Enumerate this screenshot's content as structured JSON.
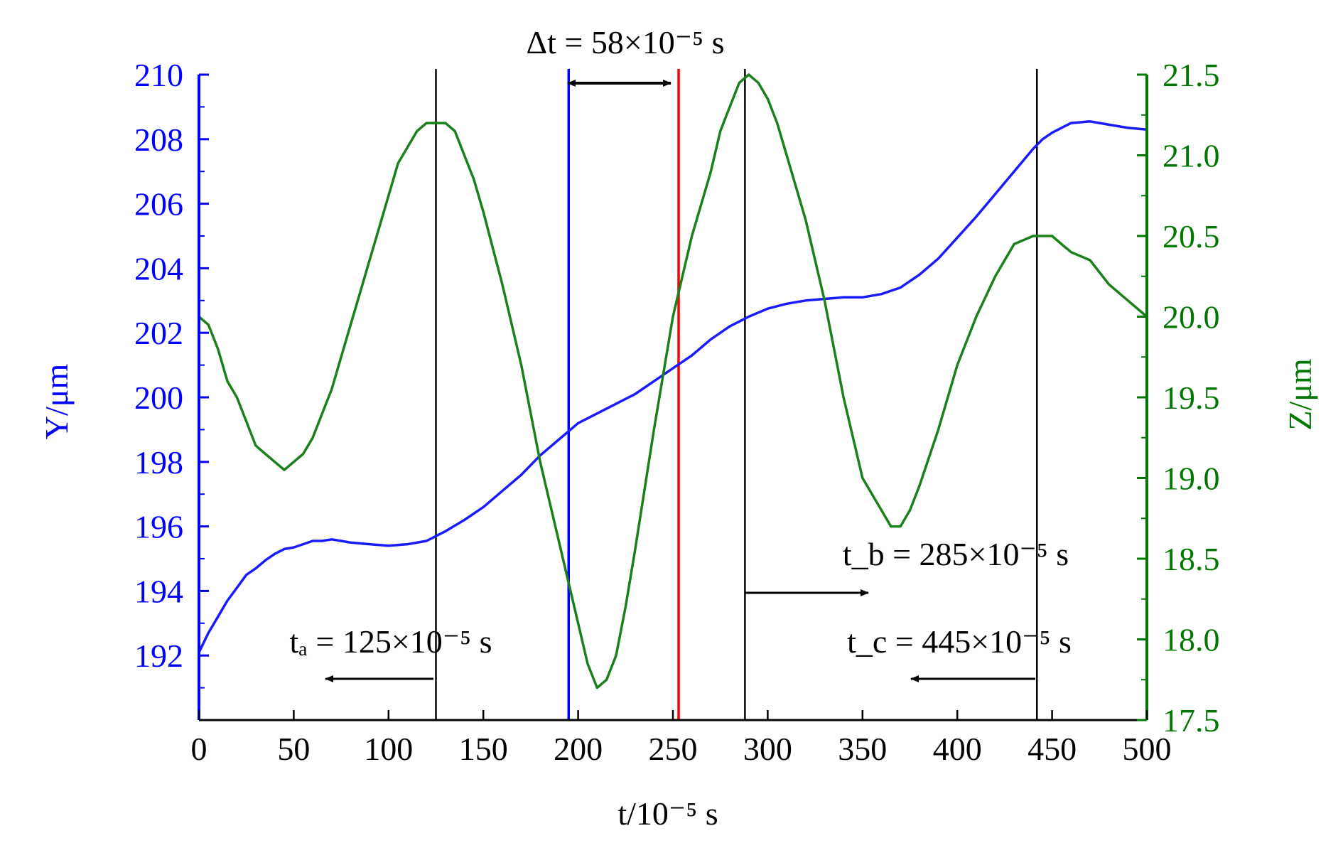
{
  "chart_data": {
    "type": "line",
    "title": "",
    "xlabel": "t/10⁻⁵ s",
    "ylabel_left": "Y/μm",
    "ylabel_right": "Z/μm",
    "xlim": [
      0,
      500
    ],
    "ylim_left": [
      190,
      210
    ],
    "ylim_right": [
      17.5,
      21.5
    ],
    "grid": false,
    "x_ticks": [
      0,
      50,
      100,
      150,
      200,
      250,
      300,
      350,
      400,
      450,
      500
    ],
    "y_left_ticks": [
      192,
      194,
      196,
      198,
      200,
      202,
      204,
      206,
      208,
      210
    ],
    "y_right_ticks": [
      "17.5",
      "18.0",
      "18.5",
      "19.0",
      "19.5",
      "20.0",
      "20.5",
      "21.0",
      "21.5"
    ],
    "colors": {
      "left_axis": "#0000ff",
      "right_axis": "#007700",
      "Y": "#1a1aff",
      "Z": "#1a801a",
      "marker_blue": "#0000ff",
      "marker_red": "#ff0000",
      "marker_black": "#000000"
    },
    "series": [
      {
        "axis": "left",
        "x": [
          0,
          5,
          10,
          15,
          20,
          25,
          30,
          35,
          40,
          45,
          50,
          55,
          60,
          65,
          70,
          75,
          80,
          90,
          100,
          110,
          120,
          125,
          130,
          140,
          150,
          160,
          170,
          180,
          190,
          200,
          210,
          220,
          230,
          240,
          250,
          260,
          270,
          280,
          285,
          290,
          300,
          310,
          320,
          330,
          340,
          350,
          360,
          370,
          380,
          390,
          400,
          410,
          420,
          430,
          440,
          445,
          450,
          460,
          470,
          480,
          490,
          500
        ],
        "values": [
          192.1,
          192.7,
          193.2,
          193.7,
          194.1,
          194.5,
          194.7,
          194.95,
          195.15,
          195.3,
          195.35,
          195.45,
          195.55,
          195.55,
          195.6,
          195.55,
          195.5,
          195.45,
          195.4,
          195.45,
          195.55,
          195.7,
          195.85,
          196.2,
          196.6,
          197.1,
          197.6,
          198.2,
          198.7,
          199.2,
          199.5,
          199.8,
          200.1,
          200.5,
          200.9,
          201.3,
          201.8,
          202.2,
          202.35,
          202.5,
          202.75,
          202.9,
          203.0,
          203.05,
          203.1,
          203.1,
          203.2,
          203.4,
          203.8,
          204.3,
          204.95,
          205.6,
          206.3,
          207.0,
          207.7,
          208.0,
          208.2,
          208.5,
          208.55,
          208.45,
          208.35,
          208.3
        ]
      },
      {
        "axis": "right",
        "x": [
          0,
          5,
          10,
          15,
          20,
          25,
          30,
          35,
          40,
          45,
          50,
          55,
          60,
          65,
          70,
          75,
          80,
          85,
          90,
          95,
          100,
          105,
          110,
          115,
          120,
          125,
          130,
          135,
          140,
          145,
          150,
          160,
          170,
          180,
          190,
          200,
          205,
          210,
          215,
          220,
          225,
          230,
          240,
          250,
          260,
          270,
          275,
          280,
          285,
          290,
          295,
          300,
          305,
          310,
          320,
          330,
          340,
          350,
          360,
          365,
          370,
          375,
          380,
          390,
          400,
          410,
          420,
          430,
          440,
          445,
          450,
          455,
          460,
          470,
          480,
          490,
          500
        ],
        "values": [
          20.0,
          19.95,
          19.8,
          19.6,
          19.5,
          19.35,
          19.2,
          19.15,
          19.1,
          19.05,
          19.1,
          19.15,
          19.25,
          19.4,
          19.55,
          19.75,
          19.95,
          20.15,
          20.35,
          20.55,
          20.75,
          20.95,
          21.05,
          21.15,
          21.2,
          21.2,
          21.2,
          21.15,
          21.0,
          20.85,
          20.65,
          20.2,
          19.7,
          19.1,
          18.6,
          18.1,
          17.85,
          17.7,
          17.75,
          17.9,
          18.2,
          18.55,
          19.3,
          20.0,
          20.5,
          20.9,
          21.15,
          21.3,
          21.45,
          21.5,
          21.45,
          21.35,
          21.2,
          21.0,
          20.6,
          20.1,
          19.5,
          19.0,
          18.8,
          18.7,
          18.7,
          18.8,
          18.95,
          19.3,
          19.7,
          20.0,
          20.25,
          20.45,
          20.5,
          20.5,
          20.5,
          20.45,
          20.4,
          20.35,
          20.2,
          20.1,
          20.0
        ]
      }
    ],
    "vertical_markers": [
      {
        "x": 125,
        "color": "black"
      },
      {
        "x": 195,
        "color": "blue"
      },
      {
        "x": 253,
        "color": "red"
      },
      {
        "x": 288,
        "color": "black"
      },
      {
        "x": 442,
        "color": "black"
      }
    ],
    "annotations": {
      "delta_t": "Δt = 58×10⁻⁵ s",
      "t_a": "tₐ = 125×10⁻⁵ s",
      "t_b": "t_b = 285×10⁻⁵ s",
      "t_c": "t_c = 445×10⁻⁵ s"
    }
  }
}
